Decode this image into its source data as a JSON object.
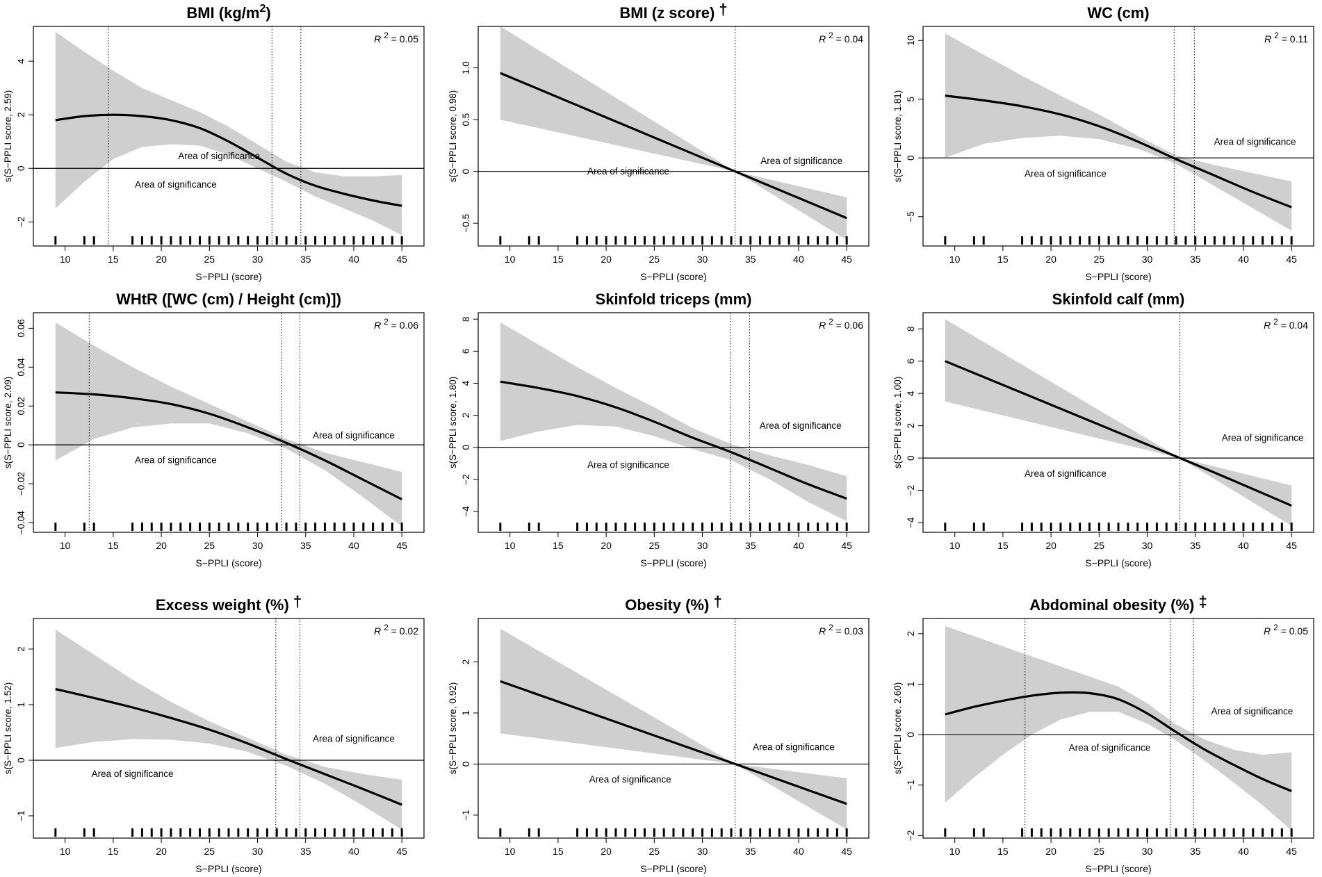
{
  "colors": {
    "band": "#cfcfcf",
    "line": "#000000",
    "axis": "#000000"
  },
  "chart_data": [
    {
      "type": "line",
      "title": "BMI (kg/m",
      "title_sup": "2",
      "title_tail": ")",
      "title_mark": "",
      "xlabel": "S−PPLI (score)",
      "ylabel": "s(S−PPLI score, 2.59)",
      "r2_label": "R",
      "r2_sup": "2",
      "r2_value": "= 0.05",
      "xlim": [
        6.7,
        47.3
      ],
      "ylim": [
        -2.9,
        5.3
      ],
      "xticks": [
        10,
        15,
        20,
        25,
        30,
        35,
        40,
        45
      ],
      "yticks": [
        -2,
        0,
        2,
        4
      ],
      "ytick_labels": [
        "−2",
        "0",
        "2",
        "4"
      ],
      "x": [
        9,
        12,
        15,
        18,
        21,
        24,
        27,
        30,
        33,
        36,
        39,
        42,
        45
      ],
      "fit": [
        1.8,
        1.95,
        2.0,
        1.95,
        1.8,
        1.5,
        1.0,
        0.4,
        -0.2,
        -0.65,
        -0.95,
        -1.2,
        -1.4
      ],
      "upper": [
        5.1,
        4.35,
        3.65,
        3.0,
        2.55,
        2.1,
        1.55,
        0.9,
        0.25,
        -0.15,
        -0.3,
        -0.3,
        -0.25
      ],
      "lower": [
        -1.5,
        -0.5,
        0.35,
        0.8,
        0.9,
        0.85,
        0.5,
        0.0,
        -0.5,
        -1.05,
        -1.5,
        -1.95,
        -2.5
      ],
      "vlines": [
        14.5,
        31.5,
        34.5
      ],
      "sig_labels": [
        {
          "text": "Area of significance",
          "x": 26,
          "y": 0.35
        },
        {
          "text": "Area of significance",
          "x": 21.5,
          "y": -0.72
        }
      ],
      "rug": [
        9,
        12,
        13,
        17,
        18,
        19,
        20,
        21,
        22,
        23,
        24,
        25,
        26,
        27,
        28,
        29,
        30,
        31,
        32,
        33,
        34,
        35,
        36,
        37,
        38,
        39,
        40,
        41,
        42,
        43,
        44,
        45
      ]
    },
    {
      "type": "line",
      "title": "BMI (z score)",
      "title_sup": "",
      "title_tail": "",
      "title_mark": "†",
      "xlabel": "S−PPLI (score)",
      "ylabel": "s(S−PPLI score, 0.98)",
      "r2_label": "R",
      "r2_sup": "2",
      "r2_value": "= 0.04",
      "xlim": [
        6.7,
        47.3
      ],
      "ylim": [
        -0.72,
        1.4
      ],
      "xticks": [
        10,
        15,
        20,
        25,
        30,
        35,
        40,
        45
      ],
      "yticks": [
        -0.5,
        0,
        0.5,
        1.0
      ],
      "ytick_labels": [
        "−0.5",
        "0",
        "0.5",
        "1.0"
      ],
      "x": [
        9,
        33.4,
        45
      ],
      "fit": [
        0.95,
        0.0,
        -0.45
      ],
      "upper": [
        1.4,
        0.0,
        -0.25
      ],
      "lower": [
        0.5,
        0.0,
        -0.66
      ],
      "vlines": [
        33.4
      ],
      "sig_labels": [
        {
          "text": "Area of significance",
          "x": 40.3,
          "y": 0.07
        },
        {
          "text": "Area of significance",
          "x": 22.3,
          "y": -0.03
        }
      ],
      "rug": [
        9,
        12,
        13,
        17,
        18,
        19,
        20,
        21,
        22,
        23,
        24,
        25,
        26,
        27,
        28,
        29,
        30,
        31,
        32,
        33,
        34,
        35,
        36,
        37,
        38,
        39,
        40,
        41,
        42,
        43,
        44,
        45
      ]
    },
    {
      "type": "line",
      "title": "WC (cm)",
      "title_sup": "",
      "title_tail": "",
      "title_mark": "",
      "xlabel": "S−PPLI (score)",
      "ylabel": "s(S−PPLI score, 1.81)",
      "r2_label": "R",
      "r2_sup": "2",
      "r2_value": "= 0.11",
      "xlim": [
        6.7,
        47.3
      ],
      "ylim": [
        -7.5,
        11.2
      ],
      "xticks": [
        10,
        15,
        20,
        25,
        30,
        35,
        40,
        45
      ],
      "yticks": [
        -5,
        0,
        5,
        10
      ],
      "ytick_labels": [
        "−5",
        "0",
        "5",
        "10"
      ],
      "x": [
        9,
        13,
        17,
        21,
        25,
        29,
        33,
        37,
        41,
        45
      ],
      "fit": [
        5.3,
        4.9,
        4.4,
        3.7,
        2.7,
        1.4,
        -0.1,
        -1.5,
        -2.9,
        -4.2
      ],
      "upper": [
        10.6,
        8.8,
        7.0,
        5.3,
        3.7,
        1.9,
        0.2,
        -0.6,
        -1.3,
        -2.0
      ],
      "lower": [
        0.0,
        1.2,
        1.7,
        1.9,
        1.6,
        0.8,
        -0.5,
        -2.4,
        -4.3,
        -6.2
      ],
      "vlines": [
        32.8,
        34.9
      ],
      "sig_labels": [
        {
          "text": "Area of significance",
          "x": 41.2,
          "y": 1.1
        },
        {
          "text": "Area of significance",
          "x": 21.5,
          "y": -1.6
        }
      ],
      "rug": [
        9,
        12,
        13,
        17,
        18,
        19,
        20,
        21,
        22,
        23,
        24,
        25,
        26,
        27,
        28,
        29,
        30,
        31,
        32,
        33,
        34,
        35,
        36,
        37,
        38,
        39,
        40,
        41,
        42,
        43,
        44,
        45
      ]
    },
    {
      "type": "line",
      "title": "WHtR ([WC (cm) / Height (cm)])",
      "title_sup": "",
      "title_tail": "",
      "title_mark": "",
      "xlabel": "S−PPLI (score)",
      "ylabel": "s(S−PPLI score, 2.09)",
      "r2_label": "R",
      "r2_sup": "2",
      "r2_value": "= 0.06",
      "xlim": [
        6.7,
        47.3
      ],
      "ylim": [
        -0.045,
        0.068
      ],
      "xticks": [
        10,
        15,
        20,
        25,
        30,
        35,
        40,
        45
      ],
      "yticks": [
        -0.04,
        -0.02,
        0,
        0.02,
        0.04,
        0.06
      ],
      "ytick_labels": [
        "−0.04",
        "−0.02",
        "0",
        "0.02",
        "0.04",
        "0.06"
      ],
      "x": [
        9,
        13,
        17,
        21,
        25,
        29,
        33,
        37,
        41,
        45
      ],
      "fit": [
        0.027,
        0.026,
        0.024,
        0.021,
        0.016,
        0.009,
        0.001,
        -0.008,
        -0.018,
        -0.028
      ],
      "upper": [
        0.063,
        0.051,
        0.04,
        0.03,
        0.021,
        0.012,
        0.003,
        -0.004,
        -0.009,
        -0.014
      ],
      "lower": [
        -0.008,
        0.003,
        0.009,
        0.011,
        0.011,
        0.006,
        -0.002,
        -0.013,
        -0.027,
        -0.042
      ],
      "vlines": [
        12.5,
        32.5,
        34.4
      ],
      "sig_labels": [
        {
          "text": "Area of significance",
          "x": 40.0,
          "y": 0.0033
        },
        {
          "text": "Area of significance",
          "x": 21.5,
          "y": -0.0095
        }
      ],
      "rug": [
        9,
        12,
        13,
        17,
        18,
        19,
        20,
        21,
        22,
        23,
        24,
        25,
        26,
        27,
        28,
        29,
        30,
        31,
        32,
        33,
        34,
        35,
        36,
        37,
        38,
        39,
        40,
        41,
        42,
        43,
        44,
        45
      ]
    },
    {
      "type": "line",
      "title": "Skinfold triceps (mm)",
      "title_sup": "",
      "title_tail": "",
      "title_mark": "",
      "xlabel": "S−PPLI (score)",
      "ylabel": "s(S−PPLI score, 1.80)",
      "r2_label": "R",
      "r2_sup": "2",
      "r2_value": "= 0.06",
      "xlim": [
        6.7,
        47.3
      ],
      "ylim": [
        -5.3,
        8.4
      ],
      "xticks": [
        10,
        15,
        20,
        25,
        30,
        35,
        40,
        45
      ],
      "yticks": [
        -4,
        -2,
        0,
        2,
        4,
        6,
        8
      ],
      "ytick_labels": [
        "−4",
        "−2",
        "0",
        "2",
        "4",
        "6",
        "8"
      ],
      "x": [
        9,
        13,
        17,
        21,
        25,
        29,
        33,
        37,
        41,
        45
      ],
      "fit": [
        4.1,
        3.7,
        3.2,
        2.5,
        1.6,
        0.6,
        -0.3,
        -1.3,
        -2.3,
        -3.2
      ],
      "upper": [
        7.8,
        6.4,
        5.0,
        3.7,
        2.5,
        1.2,
        0.2,
        -0.5,
        -1.1,
        -1.8
      ],
      "lower": [
        0.4,
        1.0,
        1.4,
        1.3,
        0.7,
        -0.1,
        -0.8,
        -2.0,
        -3.4,
        -4.6
      ],
      "vlines": [
        32.9,
        34.9
      ],
      "sig_labels": [
        {
          "text": "Area of significance",
          "x": 40.2,
          "y": 1.15
        },
        {
          "text": "Area of significance",
          "x": 22.3,
          "y": -1.3
        }
      ],
      "rug": [
        9,
        12,
        13,
        17,
        18,
        19,
        20,
        21,
        22,
        23,
        24,
        25,
        26,
        27,
        28,
        29,
        30,
        31,
        32,
        33,
        34,
        35,
        36,
        37,
        38,
        39,
        40,
        41,
        42,
        43,
        44,
        45
      ]
    },
    {
      "type": "line",
      "title": "Skinfold calf (mm)",
      "title_sup": "",
      "title_tail": "",
      "title_mark": "",
      "xlabel": "S−PPLI (score)",
      "ylabel": "s(S−PPLI score, 1.00)",
      "r2_label": "R",
      "r2_sup": "2",
      "r2_value": "= 0.04",
      "xlim": [
        6.7,
        47.3
      ],
      "ylim": [
        -4.6,
        9.0
      ],
      "xticks": [
        10,
        15,
        20,
        25,
        30,
        35,
        40,
        45
      ],
      "yticks": [
        -4,
        -2,
        0,
        2,
        4,
        6,
        8
      ],
      "ytick_labels": [
        "−4",
        "−2",
        "0",
        "2",
        "4",
        "6",
        "8"
      ],
      "x": [
        9,
        33.4,
        45
      ],
      "fit": [
        6.0,
        0.0,
        -2.95
      ],
      "upper": [
        8.6,
        0.0,
        -1.7
      ],
      "lower": [
        3.5,
        0.0,
        -4.2
      ],
      "vlines": [
        33.4
      ],
      "sig_labels": [
        {
          "text": "Area of significance",
          "x": 42.0,
          "y": 1.05
        },
        {
          "text": "Area of significance",
          "x": 21.5,
          "y": -1.15
        }
      ],
      "rug": [
        9,
        12,
        13,
        17,
        18,
        19,
        20,
        21,
        22,
        23,
        24,
        25,
        26,
        27,
        28,
        29,
        30,
        31,
        32,
        33,
        34,
        35,
        36,
        37,
        38,
        39,
        40,
        41,
        42,
        43,
        44,
        45
      ]
    },
    {
      "type": "line",
      "title": "Excess weight (%)",
      "title_sup": "",
      "title_tail": "",
      "title_mark": "†",
      "xlabel": "S−PPLI (score)",
      "ylabel": "s(S−PPLI score, 1.52)",
      "r2_label": "R",
      "r2_sup": "2",
      "r2_value": "= 0.02",
      "xlim": [
        6.7,
        47.3
      ],
      "ylim": [
        -1.4,
        2.55
      ],
      "xticks": [
        10,
        15,
        20,
        25,
        30,
        35,
        40,
        45
      ],
      "yticks": [
        -1,
        0,
        1,
        2
      ],
      "ytick_labels": [
        "−1",
        "0",
        "1",
        "2"
      ],
      "x": [
        9,
        13,
        17,
        21,
        25,
        29,
        33,
        37,
        41,
        45
      ],
      "fit": [
        1.28,
        1.12,
        0.95,
        0.76,
        0.55,
        0.3,
        0.02,
        -0.25,
        -0.52,
        -0.8
      ],
      "upper": [
        2.35,
        1.9,
        1.45,
        1.05,
        0.7,
        0.4,
        0.1,
        -0.12,
        -0.25,
        -0.35
      ],
      "lower": [
        0.22,
        0.33,
        0.38,
        0.37,
        0.3,
        0.15,
        -0.1,
        -0.42,
        -0.82,
        -1.25
      ],
      "vlines": [
        31.9,
        34.4
      ],
      "sig_labels": [
        {
          "text": "Area of significance",
          "x": 40.0,
          "y": 0.33
        },
        {
          "text": "Area of significance",
          "x": 17.0,
          "y": -0.3
        }
      ],
      "rug": [
        9,
        12,
        13,
        17,
        18,
        19,
        20,
        21,
        22,
        23,
        24,
        25,
        26,
        27,
        28,
        29,
        30,
        31,
        32,
        33,
        34,
        35,
        36,
        37,
        38,
        39,
        40,
        41,
        42,
        43,
        44,
        45
      ]
    },
    {
      "type": "line",
      "title": "Obesity (%)",
      "title_sup": "",
      "title_tail": "",
      "title_mark": "†",
      "xlabel": "S−PPLI (score)",
      "ylabel": "s(S−PPLI score, 0.92)",
      "r2_label": "R",
      "r2_sup": "2",
      "r2_value": "= 0.03",
      "xlim": [
        6.7,
        47.3
      ],
      "ylim": [
        -1.45,
        2.85
      ],
      "xticks": [
        10,
        15,
        20,
        25,
        30,
        35,
        40,
        45
      ],
      "yticks": [
        -1,
        0,
        1,
        2
      ],
      "ytick_labels": [
        "−1",
        "0",
        "1",
        "2"
      ],
      "x": [
        9,
        33.4,
        45
      ],
      "fit": [
        1.62,
        0.0,
        -0.78
      ],
      "upper": [
        2.65,
        0.0,
        -0.28
      ],
      "lower": [
        0.6,
        0.0,
        -1.28
      ],
      "vlines": [
        33.4
      ],
      "sig_labels": [
        {
          "text": "Area of significance",
          "x": 39.5,
          "y": 0.27
        },
        {
          "text": "Area of significance",
          "x": 22.5,
          "y": -0.36
        }
      ],
      "rug": [
        9,
        12,
        13,
        17,
        18,
        19,
        20,
        21,
        22,
        23,
        24,
        25,
        26,
        27,
        28,
        29,
        30,
        31,
        32,
        33,
        34,
        35,
        36,
        37,
        38,
        39,
        40,
        41,
        42,
        43,
        44,
        45
      ]
    },
    {
      "type": "line",
      "title": "Abdominal obesity (%)",
      "title_sup": "",
      "title_tail": "",
      "title_mark": "‡",
      "xlabel": "S−PPLI (score)",
      "ylabel": "s(S−PPLI score, 2.60)",
      "r2_label": "R",
      "r2_sup": "2",
      "r2_value": "= 0.05",
      "xlim": [
        6.7,
        47.3
      ],
      "ylim": [
        -2.05,
        2.3
      ],
      "xticks": [
        10,
        15,
        20,
        25,
        30,
        35,
        40,
        45
      ],
      "yticks": [
        -2,
        -1,
        0,
        1,
        2
      ],
      "ytick_labels": [
        "−2",
        "−1",
        "0",
        "1",
        "2"
      ],
      "x": [
        9,
        12,
        15,
        18,
        21,
        24,
        27,
        30,
        33,
        36,
        39,
        42,
        45
      ],
      "fit": [
        0.4,
        0.55,
        0.67,
        0.77,
        0.83,
        0.82,
        0.7,
        0.42,
        0.05,
        -0.3,
        -0.6,
        -0.88,
        -1.12
      ],
      "upper": [
        2.15,
        1.95,
        1.75,
        1.55,
        1.35,
        1.15,
        0.95,
        0.62,
        0.2,
        -0.1,
        -0.3,
        -0.4,
        -0.35
      ],
      "lower": [
        -1.35,
        -0.85,
        -0.4,
        0.0,
        0.3,
        0.45,
        0.45,
        0.22,
        -0.12,
        -0.52,
        -0.95,
        -1.4,
        -1.9
      ],
      "vlines": [
        17.3,
        32.4,
        34.8
      ],
      "sig_labels": [
        {
          "text": "Area of significance",
          "x": 40.9,
          "y": 0.4
        },
        {
          "text": "Area of significance",
          "x": 26.1,
          "y": -0.32
        }
      ],
      "rug": [
        9,
        12,
        13,
        17,
        18,
        19,
        20,
        21,
        22,
        23,
        24,
        25,
        26,
        27,
        28,
        29,
        30,
        31,
        32,
        33,
        34,
        35,
        36,
        37,
        38,
        39,
        40,
        41,
        42,
        43,
        44,
        45
      ]
    }
  ]
}
